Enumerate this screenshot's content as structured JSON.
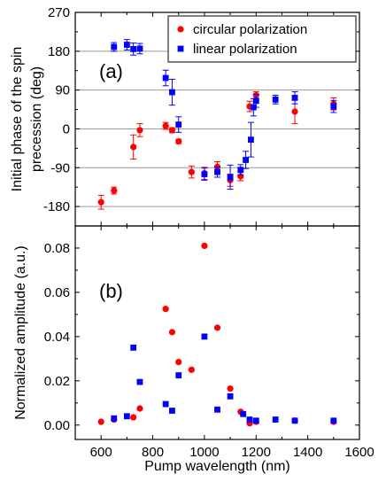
{
  "chart_data": [
    {
      "panel": "(a)",
      "type": "scatter",
      "ylabel": "Initial phase of the spin precession (deg)",
      "ylabel_lines": [
        "Initial phase of the spin",
        "precession (deg)"
      ],
      "ylim": [
        -225,
        270
      ],
      "yticks": [
        -180,
        -90,
        0,
        90,
        180,
        270
      ],
      "xlim": [
        500,
        1600
      ],
      "grid_y": [
        -180,
        -90,
        0,
        90,
        180
      ],
      "legend_position": "top-right",
      "series": [
        {
          "name": "circular polarization",
          "color": "#ff0000",
          "marker": "circle",
          "points": [
            {
              "x": 600,
              "y": -170,
              "err": 16
            },
            {
              "x": 650,
              "y": -143,
              "err": 8
            },
            {
              "x": 725,
              "y": -42,
              "err": 28
            },
            {
              "x": 750,
              "y": -3,
              "err": 15
            },
            {
              "x": 850,
              "y": 7,
              "err": 8
            },
            {
              "x": 875,
              "y": -3,
              "err": 6
            },
            {
              "x": 900,
              "y": -29,
              "err": 5
            },
            {
              "x": 950,
              "y": -100,
              "err": 14
            },
            {
              "x": 1000,
              "y": -103,
              "err": 14
            },
            {
              "x": 1050,
              "y": -88,
              "err": 12
            },
            {
              "x": 1100,
              "y": -119,
              "err": 14
            },
            {
              "x": 1140,
              "y": -110,
              "err": 10
            },
            {
              "x": 1175,
              "y": 52,
              "err": 12
            },
            {
              "x": 1200,
              "y": 78,
              "err": 8
            },
            {
              "x": 1350,
              "y": 40,
              "err": 28
            },
            {
              "x": 1500,
              "y": 58,
              "err": 14
            }
          ]
        },
        {
          "name": "linear polarization",
          "color": "#0000ff",
          "marker": "square",
          "points": [
            {
              "x": 650,
              "y": 190,
              "err": 10
            },
            {
              "x": 700,
              "y": 195,
              "err": 12
            },
            {
              "x": 725,
              "y": 185,
              "err": 14
            },
            {
              "x": 750,
              "y": 186,
              "err": 12
            },
            {
              "x": 850,
              "y": 118,
              "err": 18
            },
            {
              "x": 875,
              "y": 85,
              "err": 30
            },
            {
              "x": 900,
              "y": 10,
              "err": 18
            },
            {
              "x": 1000,
              "y": -105,
              "err": 14
            },
            {
              "x": 1050,
              "y": -100,
              "err": 12
            },
            {
              "x": 1100,
              "y": -112,
              "err": 28
            },
            {
              "x": 1140,
              "y": -95,
              "err": 12
            },
            {
              "x": 1160,
              "y": -72,
              "err": 20
            },
            {
              "x": 1180,
              "y": -25,
              "err": 40
            },
            {
              "x": 1190,
              "y": 50,
              "err": 20
            },
            {
              "x": 1200,
              "y": 65,
              "err": 15
            },
            {
              "x": 1275,
              "y": 68,
              "err": 10
            },
            {
              "x": 1350,
              "y": 72,
              "err": 14
            },
            {
              "x": 1500,
              "y": 52,
              "err": 14
            }
          ]
        }
      ]
    },
    {
      "panel": "(b)",
      "type": "scatter",
      "xlabel": "Pump wavelength (nm)",
      "ylabel": "Normalized amplitude (a.u.)",
      "xlim": [
        500,
        1600
      ],
      "xticks": [
        600,
        800,
        1000,
        1200,
        1400,
        1600
      ],
      "ylim": [
        -0.0065,
        0.09
      ],
      "yticks": [
        0.0,
        0.02,
        0.04,
        0.06,
        0.08
      ],
      "ytick_labels": [
        "0.00",
        "0.02",
        "0.04",
        "0.06",
        "0.08"
      ],
      "series": [
        {
          "name": "circular polarization",
          "color": "#ff0000",
          "marker": "circle",
          "points": [
            {
              "x": 600,
              "y": 0.0015
            },
            {
              "x": 650,
              "y": 0.0025
            },
            {
              "x": 725,
              "y": 0.0035
            },
            {
              "x": 750,
              "y": 0.0075
            },
            {
              "x": 850,
              "y": 0.0525
            },
            {
              "x": 875,
              "y": 0.042
            },
            {
              "x": 900,
              "y": 0.0285
            },
            {
              "x": 950,
              "y": 0.025
            },
            {
              "x": 1000,
              "y": 0.081
            },
            {
              "x": 1050,
              "y": 0.044
            },
            {
              "x": 1100,
              "y": 0.0165
            },
            {
              "x": 1140,
              "y": 0.006
            },
            {
              "x": 1175,
              "y": 0.0008
            },
            {
              "x": 1200,
              "y": 0.0015
            },
            {
              "x": 1350,
              "y": 0.002
            },
            {
              "x": 1500,
              "y": 0.0015
            }
          ]
        },
        {
          "name": "linear polarization",
          "color": "#0000ff",
          "marker": "square",
          "points": [
            {
              "x": 650,
              "y": 0.003
            },
            {
              "x": 700,
              "y": 0.004
            },
            {
              "x": 725,
              "y": 0.035
            },
            {
              "x": 750,
              "y": 0.0195
            },
            {
              "x": 850,
              "y": 0.0095
            },
            {
              "x": 875,
              "y": 0.0065
            },
            {
              "x": 900,
              "y": 0.0225
            },
            {
              "x": 1000,
              "y": 0.04
            },
            {
              "x": 1050,
              "y": 0.007
            },
            {
              "x": 1100,
              "y": 0.013
            },
            {
              "x": 1150,
              "y": 0.005
            },
            {
              "x": 1175,
              "y": 0.0025
            },
            {
              "x": 1200,
              "y": 0.002
            },
            {
              "x": 1275,
              "y": 0.0025
            },
            {
              "x": 1350,
              "y": 0.002
            },
            {
              "x": 1500,
              "y": 0.002
            }
          ]
        }
      ]
    }
  ]
}
